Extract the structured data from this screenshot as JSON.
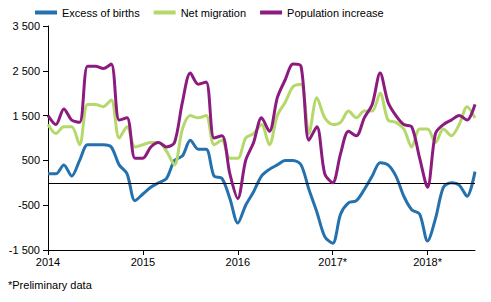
{
  "chart_data": {
    "type": "line",
    "annotation": "*Preliminary data",
    "categories": [
      "2014",
      null,
      null,
      null,
      null,
      null,
      null,
      null,
      null,
      null,
      null,
      null,
      "2015",
      null,
      null,
      null,
      null,
      null,
      null,
      null,
      null,
      null,
      null,
      null,
      "2016",
      null,
      null,
      null,
      null,
      null,
      null,
      null,
      null,
      null,
      null,
      null,
      "2017*",
      null,
      null,
      null,
      null,
      null,
      null,
      null,
      null,
      null,
      null,
      null,
      "2018*",
      null,
      null,
      null,
      null,
      null,
      null
    ],
    "series": [
      {
        "name": "Excess of births",
        "color": "#2471ad",
        "values": [
          200,
          200,
          400,
          150,
          500,
          850,
          850,
          850,
          800,
          400,
          200,
          -400,
          -250,
          -100,
          0,
          100,
          500,
          600,
          950,
          750,
          750,
          150,
          100,
          -350,
          -900,
          -500,
          -200,
          150,
          300,
          400,
          500,
          500,
          400,
          -150,
          -650,
          -1200,
          -1350,
          -700,
          -450,
          -400,
          -150,
          150,
          450,
          400,
          150,
          -300,
          -600,
          -700,
          -1300,
          -800,
          -100,
          0,
          -50,
          -300,
          250
        ]
      },
      {
        "name": "Net migration",
        "color": "#b5d86b",
        "values": [
          1300,
          1100,
          1250,
          1250,
          850,
          1750,
          1750,
          1700,
          1850,
          1000,
          1250,
          800,
          850,
          900,
          900,
          700,
          400,
          1200,
          1500,
          1450,
          1500,
          850,
          950,
          550,
          550,
          1000,
          1100,
          1300,
          850,
          1500,
          1800,
          2150,
          2200,
          1100,
          1900,
          1450,
          1300,
          1350,
          1600,
          1450,
          1600,
          1600,
          2000,
          1400,
          1350,
          1200,
          800,
          1200,
          1200,
          900,
          1200,
          1050,
          1300,
          1700,
          1450
        ]
      },
      {
        "name": "Population increase",
        "color": "#8c1b7f",
        "values": [
          1500,
          1300,
          1650,
          1400,
          1350,
          2600,
          2600,
          2550,
          2650,
          1400,
          1450,
          550,
          550,
          800,
          900,
          800,
          900,
          1800,
          2450,
          2200,
          2250,
          1000,
          1050,
          200,
          -350,
          500,
          900,
          1450,
          1150,
          1900,
          2300,
          2650,
          2600,
          950,
          1250,
          200,
          0,
          650,
          1150,
          1050,
          1450,
          1750,
          2450,
          1800,
          1500,
          1300,
          1250,
          550,
          -100,
          1100,
          1300,
          1400,
          1500,
          1400,
          1750
        ]
      }
    ],
    "ylim": [
      -1500,
      3500
    ],
    "yticks": [
      {
        "value": -1500,
        "label": "-1 500"
      },
      -500,
      500,
      {
        "value": 1500,
        "label": "1 500"
      },
      {
        "value": 2500,
        "label": "2 500"
      },
      {
        "value": 3500,
        "label": "3 500"
      }
    ],
    "grid": false,
    "legend": "top-left"
  }
}
